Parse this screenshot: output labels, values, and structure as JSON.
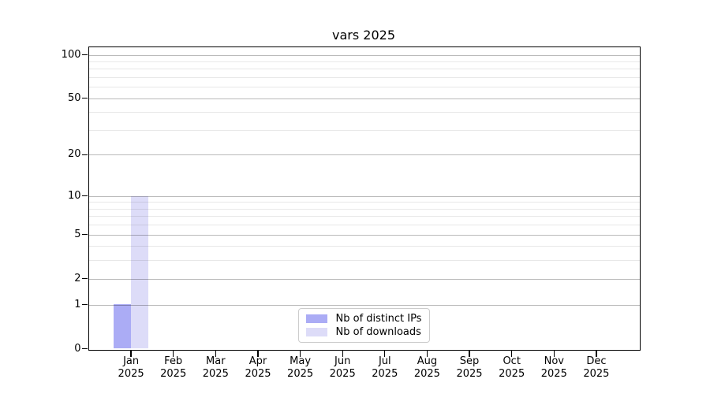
{
  "figure": {
    "title": "vars 2025"
  },
  "chart_data": {
    "type": "bar",
    "title": "vars 2025",
    "categories": [
      "Jan 2025",
      "Feb 2025",
      "Mar 2025",
      "Apr 2025",
      "May 2025",
      "Jun 2025",
      "Jul 2025",
      "Aug 2025",
      "Sep 2025",
      "Oct 2025",
      "Nov 2025",
      "Dec 2025"
    ],
    "series": [
      {
        "name": "Nb of distinct IPs",
        "color": "#abacf5",
        "values": [
          1,
          0,
          0,
          0,
          0,
          0,
          0,
          0,
          0,
          0,
          0,
          0
        ]
      },
      {
        "name": "Nb of downloads",
        "color": "#dddcf8",
        "values": [
          10,
          0,
          0,
          0,
          0,
          0,
          0,
          0,
          0,
          0,
          0,
          0
        ]
      }
    ],
    "xlabel": "",
    "ylabel": "",
    "y_scale": "log1p",
    "y_ticks": [
      0,
      1,
      2,
      5,
      10,
      20,
      50,
      100
    ],
    "y_minor_ticks": [
      3,
      4,
      6,
      7,
      8,
      9,
      30,
      40,
      60,
      70,
      80,
      90
    ],
    "ylim": [
      0,
      113
    ],
    "grid": "horizontal major+minor",
    "legend_position": "lower center"
  }
}
